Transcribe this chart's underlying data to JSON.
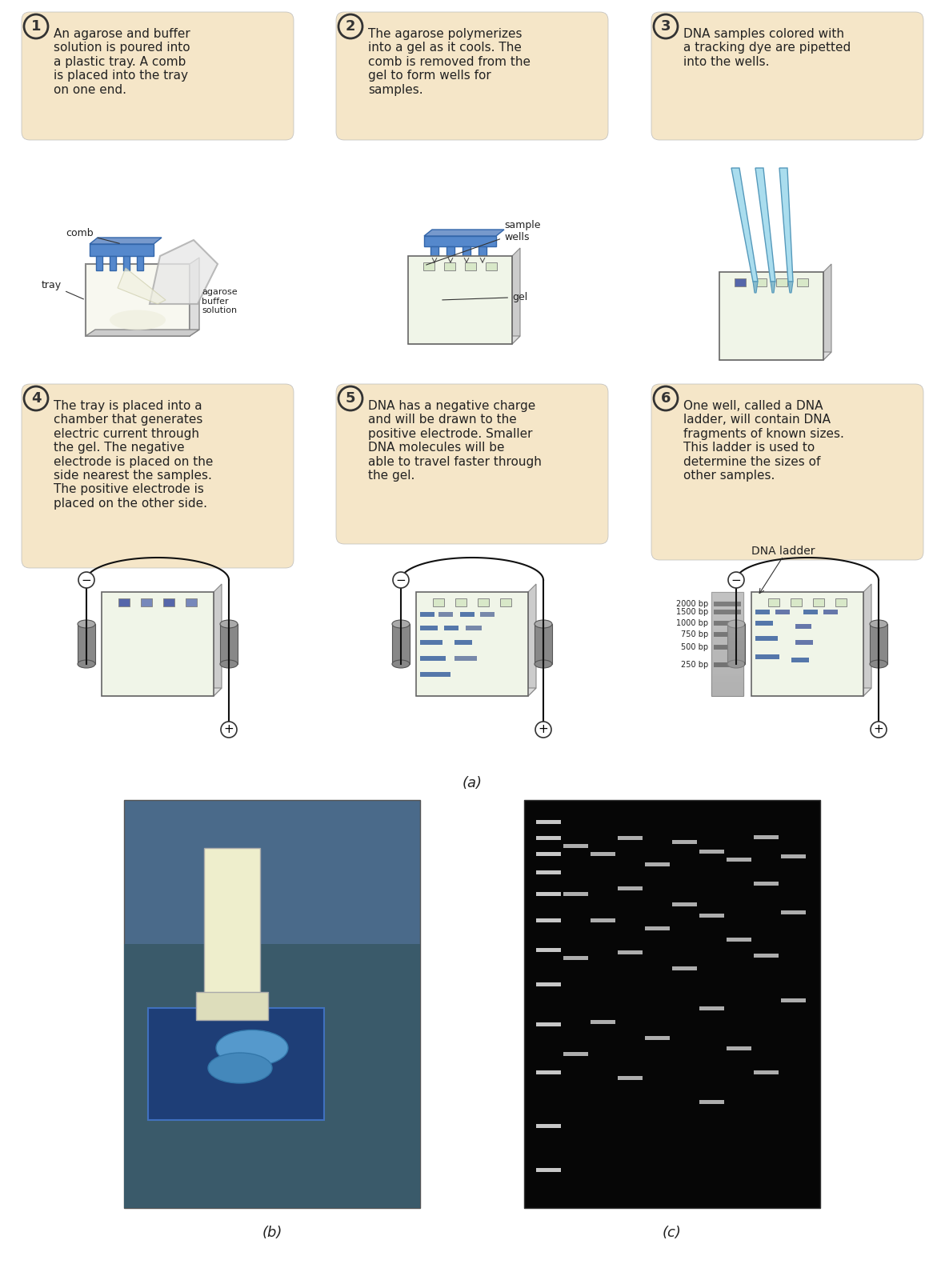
{
  "title_label": "(a)",
  "bottom_labels": [
    "(b)",
    "(c)"
  ],
  "bg_color": "#ffffff",
  "box_bg": "#f5e6c8",
  "box_border": "#cccccc",
  "step_circle_bg": "#f5e6c8",
  "step_circle_border": "#333333",
  "gel_color": "#f0f5e8",
  "gel_border": "#aaaaaa",
  "comb_color": "#5588cc",
  "electrode_color": "#888888",
  "band_color": "#5577aa",
  "ladder_color": "#aaaaaa",
  "wire_color": "#111111",
  "steps": [
    {
      "num": "1",
      "text": "An agarose and buffer\nsolution is poured into\na plastic tray. A comb\nis placed into the tray\non one end."
    },
    {
      "num": "2",
      "text": "The agarose polymerizes\ninto a gel as it cools. The\ncomb is removed from the\ngel to form wells for\nsamples."
    },
    {
      "num": "3",
      "text": "DNA samples colored with\na tracking dye are pipetted\ninto the wells."
    },
    {
      "num": "4",
      "text": "The tray is placed into a\nchamber that generates\nelectric current through\nthe gel. The negative\nelectrode is placed on the\nside nearest the samples.\nThe positive electrode is\nplaced on the other side."
    },
    {
      "num": "5",
      "text": "DNA has a negative charge\nand will be drawn to the\npositive electrode. Smaller\nDNA molecules will be\nable to travel faster through\nthe gel."
    },
    {
      "num": "6",
      "text": "One well, called a DNA\nladder, will contain DNA\nfragments of known sizes.\nThis ladder is used to\ndetermine the sizes of\nother samples."
    }
  ],
  "ladder_sizes": [
    "2000 bp",
    "1500 bp",
    "1000 bp",
    "750 bp",
    "500 bp",
    "250 bp"
  ],
  "photo_bg_left": "#3a5a80",
  "photo_bg_right": "#050505"
}
